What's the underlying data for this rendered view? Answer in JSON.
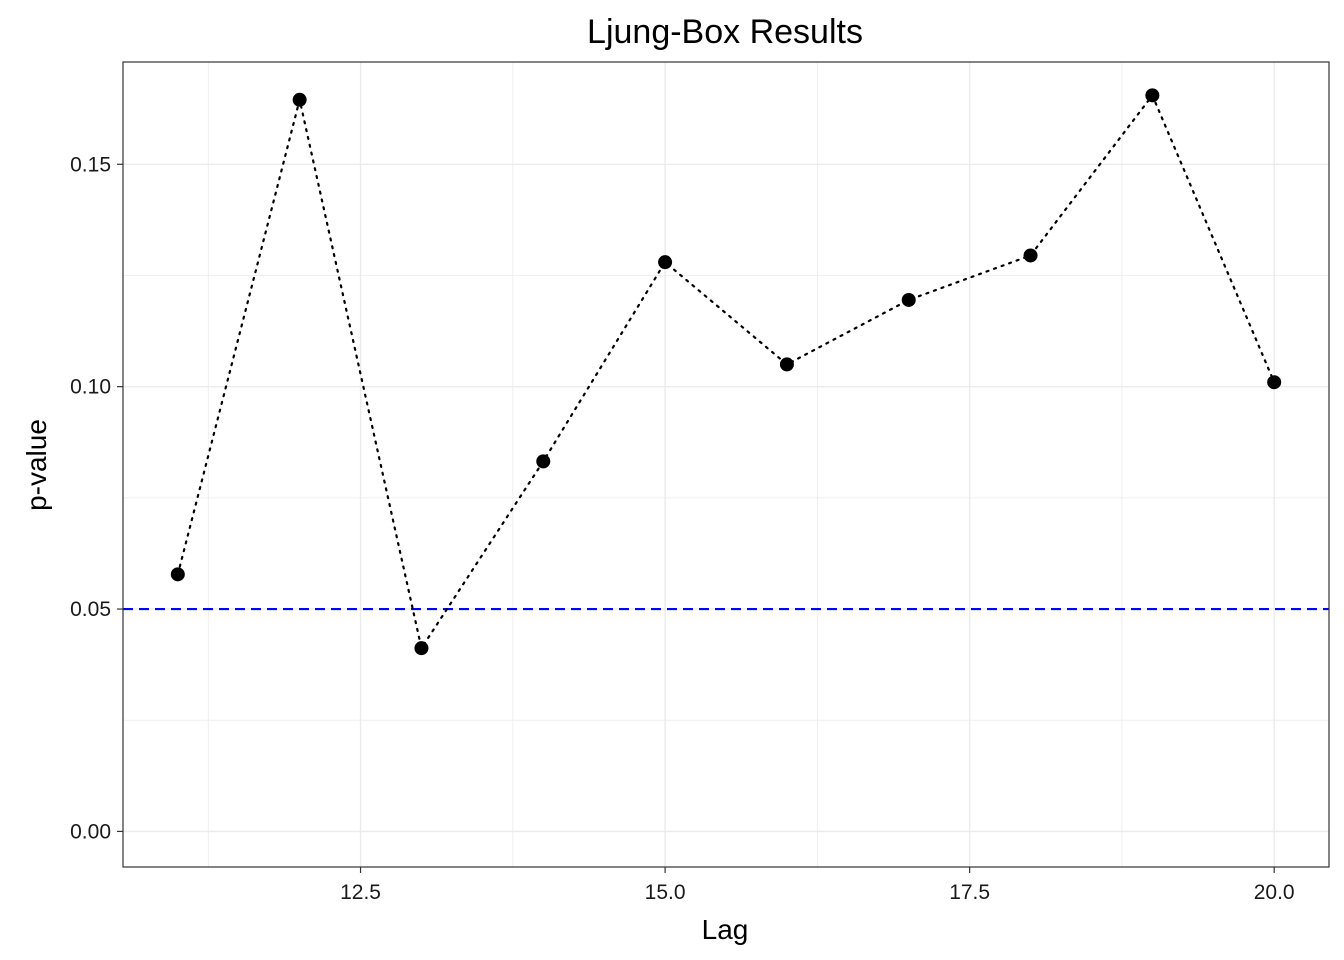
{
  "chart_data": {
    "type": "line",
    "title": "Ljung-Box Results",
    "xlabel": "Lag",
    "ylabel": "p-value",
    "x": [
      11,
      12,
      13,
      14,
      15,
      16,
      17,
      18,
      19,
      20
    ],
    "series": [
      {
        "values": [
          0.0578,
          0.1645,
          0.0412,
          0.0832,
          0.128,
          0.105,
          0.1195,
          0.1295,
          0.1655,
          0.101
        ],
        "line_style": "dotted",
        "marker": "circle",
        "color": "#000000"
      }
    ],
    "reference_lines": [
      {
        "axis": "y",
        "value": 0.05,
        "style": "dashed",
        "color": "#0000ff"
      }
    ],
    "xlim": [
      10.55,
      20.45
    ],
    "ylim": [
      -0.008,
      0.173
    ],
    "x_ticks": [
      12.5,
      15.0,
      17.5,
      20.0
    ],
    "x_tick_labels": [
      "12.5",
      "15.0",
      "17.5",
      "20.0"
    ],
    "y_ticks": [
      0.0,
      0.05,
      0.1,
      0.15
    ],
    "y_tick_labels": [
      "0.00",
      "0.05",
      "0.10",
      "0.15"
    ],
    "grid": true,
    "panel_border": true,
    "legend": "none",
    "colors": {
      "grid": "#ebebeb",
      "border": "#333333",
      "ticks": "#333333"
    }
  }
}
